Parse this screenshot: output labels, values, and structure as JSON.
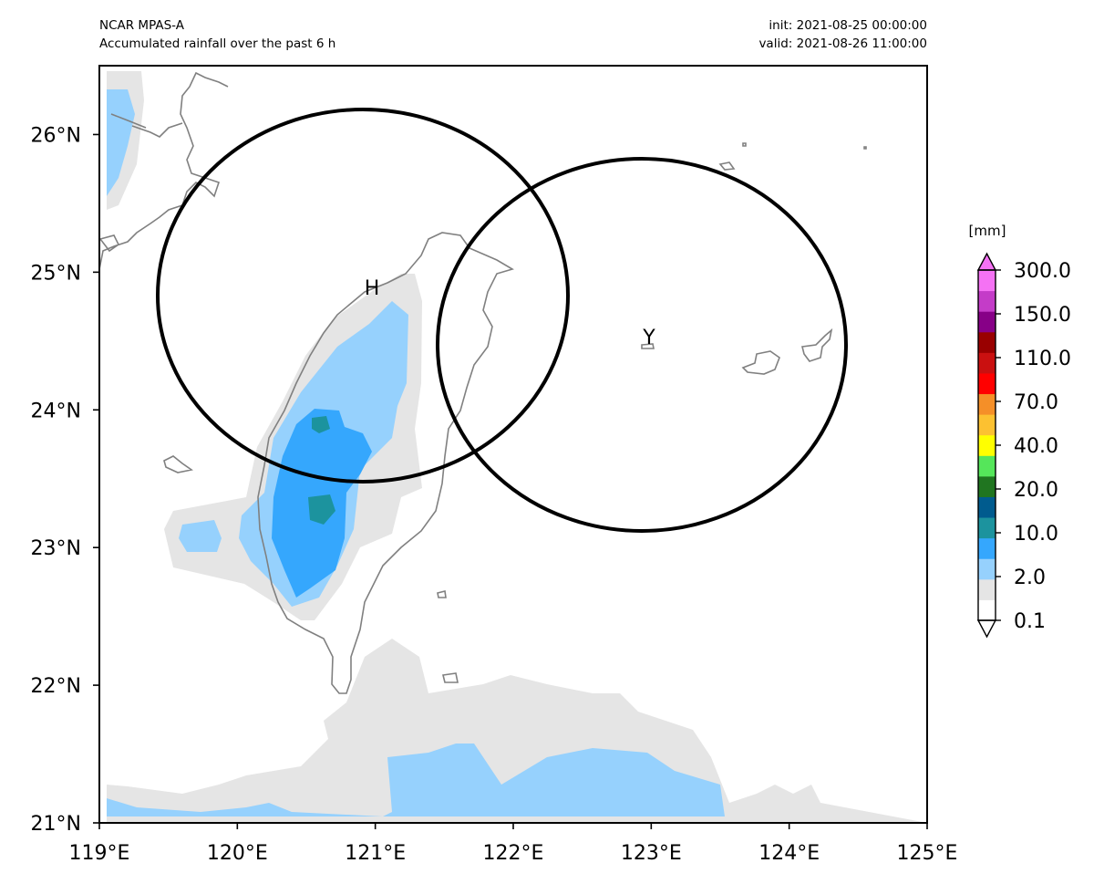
{
  "header": {
    "model": "NCAR MPAS-A",
    "description": "Accumulated rainfall over the past 6 h",
    "init": "init: 2021-08-25 00:00:00",
    "valid": "valid: 2021-08-26 11:00:00"
  },
  "map": {
    "lon_range": [
      119,
      125
    ],
    "lat_range": [
      21,
      26.5
    ],
    "x_ticks": [
      "119°E",
      "120°E",
      "121°E",
      "122°E",
      "123°E",
      "124°E",
      "125°E"
    ],
    "y_ticks": [
      "21°N",
      "22°N",
      "23°N",
      "24°N",
      "25°N",
      "26°N"
    ],
    "coastline_color": "#808080",
    "frame_color": "#000000",
    "radar_circles": [
      {
        "label": "H",
        "center_lon": 120.92,
        "center_lat": 24.83
      },
      {
        "label": "Y",
        "center_lon": 122.95,
        "center_lat": 24.47
      }
    ]
  },
  "colorbar": {
    "unit": "[mm]",
    "levels": [
      "0.1",
      "2.0",
      "10.0",
      "20.0",
      "40.0",
      "70.0",
      "110.0",
      "150.0",
      "300.0"
    ],
    "colors": [
      "#ffffff",
      "#e5e5e5",
      "#96d1fd",
      "#35a7fd",
      "#1c939e",
      "#005b8e",
      "#207520",
      "#55e65a",
      "#ffff00",
      "#fcc131",
      "#f58f28",
      "#ff0000",
      "#ca1010",
      "#990000",
      "#870087",
      "#c43cc8",
      "#f572f4"
    ],
    "extend_low_color": "#ffffff",
    "extend_high_color": "#f572f4"
  }
}
